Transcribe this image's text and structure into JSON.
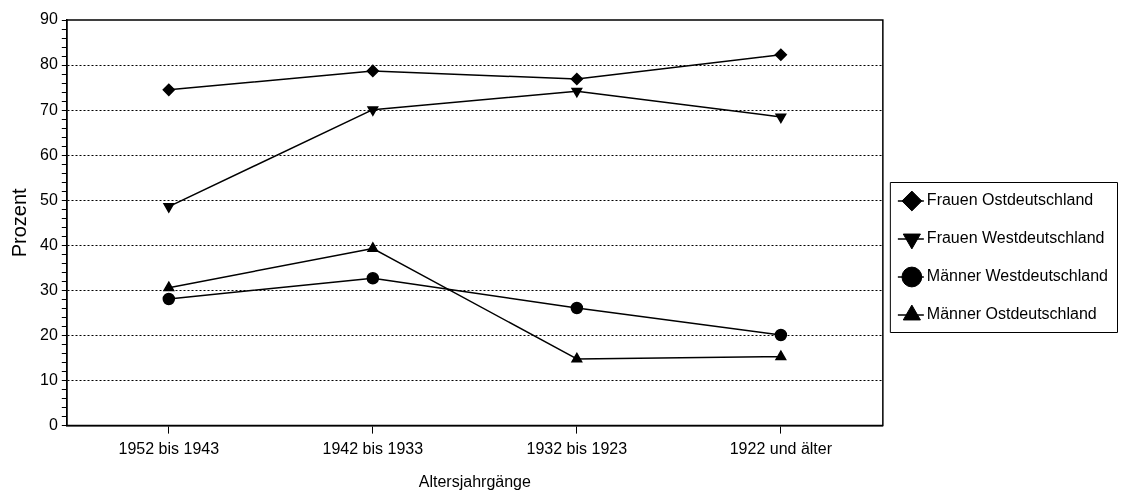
{
  "chart_data": {
    "type": "line",
    "xlabel": "Altersjahrgänge",
    "ylabel": "Prozent",
    "categories": [
      "1952 bis 1943",
      "1942 bis 1933",
      "1932 bis 1923",
      "1922 und älter"
    ],
    "series": [
      {
        "name": "Frauen Ostdeutschland",
        "color": "#000000",
        "marker": "diamond",
        "values": [
          74.5,
          78.7,
          76.9,
          82.3
        ]
      },
      {
        "name": "Frauen Westdeutschland",
        "color": "#000000",
        "marker": "triangle-down",
        "values": [
          48.6,
          70.1,
          74.2,
          68.5
        ]
      },
      {
        "name": "Männer Westdeutschland",
        "color": "#000000",
        "marker": "circle",
        "values": [
          28.1,
          32.7,
          26.1,
          20.1
        ]
      },
      {
        "name": "Männer Ostdeutschland",
        "color": "#000000",
        "marker": "triangle",
        "values": [
          30.6,
          39.3,
          14.8,
          15.3
        ]
      }
    ],
    "ylim": [
      0,
      90
    ],
    "yticks": [
      0,
      {
        "value": 2,
        "label": null
      },
      {
        "value": 4,
        "label": null
      },
      {
        "value": 6,
        "label": null
      },
      {
        "value": 8,
        "label": null
      },
      10,
      {
        "value": 12,
        "label": null
      },
      {
        "value": 14,
        "label": null
      },
      {
        "value": 16,
        "label": null
      },
      {
        "value": 18,
        "label": null
      },
      20,
      {
        "value": 22,
        "label": null
      },
      {
        "value": 24,
        "label": null
      },
      {
        "value": 26,
        "label": null
      },
      {
        "value": 28,
        "label": null
      },
      30,
      {
        "value": 32,
        "label": null
      },
      {
        "value": 34,
        "label": null
      },
      {
        "value": 36,
        "label": null
      },
      {
        "value": 38,
        "label": null
      },
      40,
      {
        "value": 42,
        "label": null
      },
      {
        "value": 44,
        "label": null
      },
      {
        "value": 46,
        "label": null
      },
      {
        "value": 48,
        "label": null
      },
      50,
      {
        "value": 52,
        "label": null
      },
      {
        "value": 54,
        "label": null
      },
      {
        "value": 56,
        "label": null
      },
      {
        "value": 58,
        "label": null
      },
      60,
      {
        "value": 62,
        "label": null
      },
      {
        "value": 64,
        "label": null
      },
      {
        "value": 66,
        "label": null
      },
      {
        "value": 68,
        "label": null
      },
      70,
      {
        "value": 72,
        "label": null
      },
      {
        "value": 74,
        "label": null
      },
      {
        "value": 76,
        "label": null
      },
      {
        "value": 78,
        "label": null
      },
      80,
      {
        "value": 82,
        "label": null
      },
      {
        "value": 84,
        "label": null
      },
      {
        "value": 86,
        "label": null
      },
      {
        "value": 88,
        "label": null
      },
      90
    ],
    "grid": "y",
    "legend": "right",
    "line_style": "solid"
  }
}
